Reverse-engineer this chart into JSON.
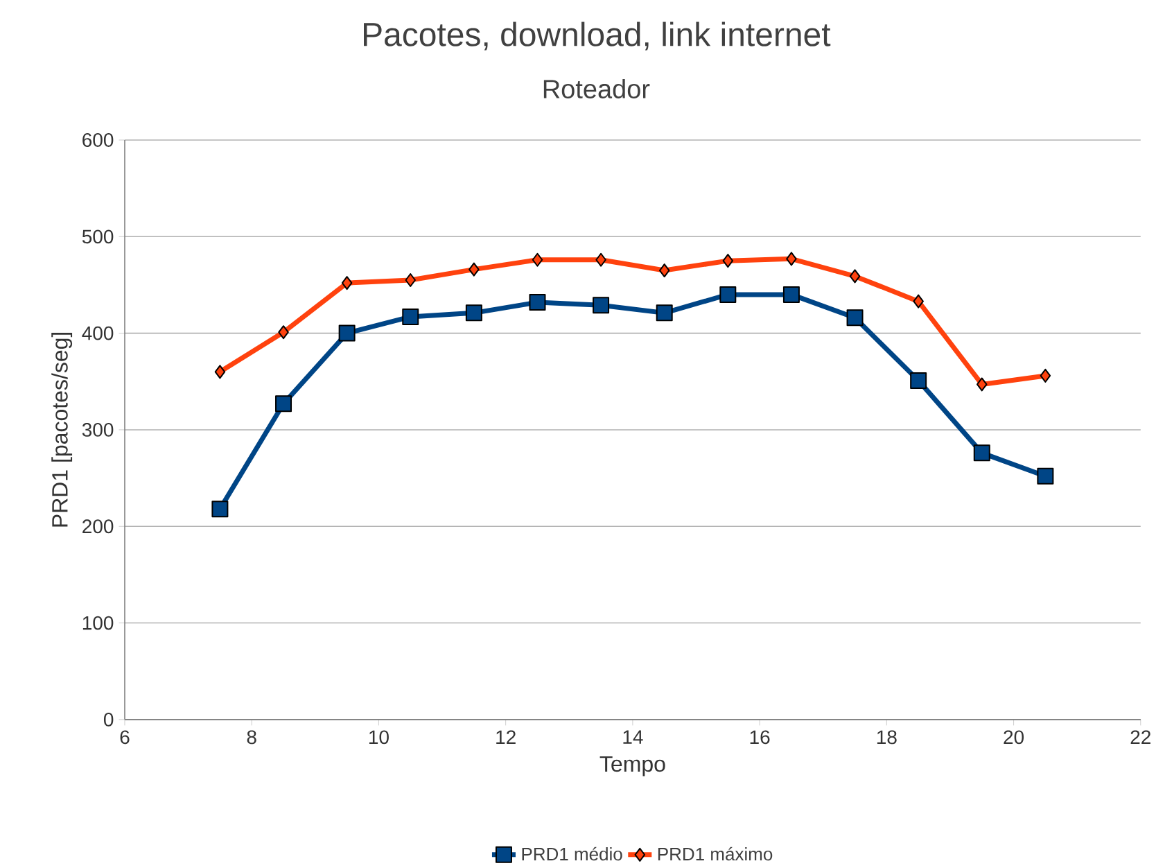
{
  "chart_data": {
    "type": "line",
    "title": "Pacotes, download, link internet",
    "subtitle": "Roteador",
    "xlabel": "Tempo",
    "ylabel": "PRD1 [pacotes/seg]",
    "x": [
      7.5,
      8.5,
      9.5,
      10.5,
      11.5,
      12.5,
      13.5,
      14.5,
      15.5,
      16.5,
      17.5,
      18.5,
      19.5,
      20.5
    ],
    "series": [
      {
        "name": "PRD1 médio",
        "color": "#004586",
        "marker": "square",
        "values": [
          218,
          327,
          400,
          417,
          421,
          432,
          429,
          421,
          440,
          440,
          416,
          351,
          276,
          252
        ]
      },
      {
        "name": "PRD1 máximo",
        "color": "#ff420e",
        "marker": "diamond",
        "values": [
          360,
          401,
          452,
          455,
          466,
          476,
          476,
          465,
          475,
          477,
          459,
          433,
          347,
          356
        ]
      }
    ],
    "xlim": [
      6,
      22
    ],
    "xticks": [
      6,
      8,
      10,
      12,
      14,
      16,
      18,
      20,
      22
    ],
    "ylim": [
      0,
      600
    ],
    "yticks": [
      0,
      100,
      200,
      300,
      400,
      500,
      600
    ],
    "grid": "y",
    "legend": "bottom",
    "line_style": "solid"
  }
}
